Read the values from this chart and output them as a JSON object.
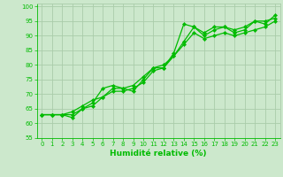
{
  "xlabel": "Humidité relative (%)",
  "bg_color": "#cce8cc",
  "grid_color": "#aaccaa",
  "line_color": "#00bb00",
  "xlim": [
    -0.5,
    23.5
  ],
  "ylim": [
    55,
    101
  ],
  "yticks": [
    55,
    60,
    65,
    70,
    75,
    80,
    85,
    90,
    95,
    100
  ],
  "xticks": [
    0,
    1,
    2,
    3,
    4,
    5,
    6,
    7,
    8,
    9,
    10,
    11,
    12,
    13,
    14,
    15,
    16,
    17,
    18,
    19,
    20,
    21,
    22,
    23
  ],
  "series": [
    [
      63,
      63,
      63,
      62,
      65,
      67,
      72,
      73,
      72,
      71,
      75,
      79,
      79,
      84,
      94,
      93,
      91,
      93,
      93,
      92,
      93,
      95,
      94,
      97
    ],
    [
      63,
      63,
      63,
      64,
      66,
      68,
      69,
      72,
      72,
      73,
      76,
      79,
      80,
      83,
      88,
      93,
      90,
      92,
      93,
      91,
      92,
      95,
      95,
      96
    ],
    [
      63,
      63,
      63,
      63,
      65,
      66,
      69,
      71,
      71,
      72,
      74,
      78,
      79,
      83,
      87,
      91,
      89,
      90,
      91,
      90,
      91,
      92,
      93,
      95
    ]
  ],
  "xlabel_fontsize": 6.5,
  "tick_fontsize": 5.0,
  "linewidth": 0.9,
  "markersize": 2.2
}
